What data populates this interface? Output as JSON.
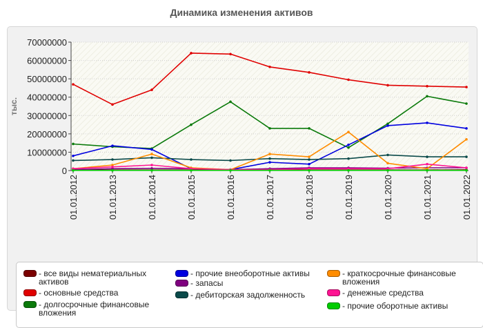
{
  "chart_data": {
    "type": "line",
    "title": "Динамика изменения активов",
    "ylabel": "тыс.",
    "xlabel": "",
    "ylim": [
      0,
      70000000
    ],
    "yticks": [
      "0",
      "10000000",
      "20000000",
      "30000000",
      "40000000",
      "50000000",
      "60000000",
      "70000000"
    ],
    "categories": [
      "01.01.2012",
      "01.01.2013",
      "01.01.2014",
      "01.01.2015",
      "01.01.2016",
      "01.01.2017",
      "01.01.2018",
      "01.01.2019",
      "01.01.2020",
      "01.01.2021",
      "01.01.2022"
    ],
    "grid": true,
    "legend_position": "bottom",
    "series": [
      {
        "name": "все виды нематериальных активов",
        "color": "#7b0000",
        "values": [
          300000,
          300000,
          300000,
          300000,
          300000,
          300000,
          300000,
          300000,
          300000,
          300000,
          400000
        ]
      },
      {
        "name": "основные средства",
        "color": "#e00000",
        "values": [
          47000000,
          36000000,
          44000000,
          64000000,
          63500000,
          56500000,
          53500000,
          49500000,
          46500000,
          46000000,
          45500000
        ]
      },
      {
        "name": "долгосрочные финансовые вложения",
        "color": "#0a7a0a",
        "values": [
          14500000,
          13000000,
          12000000,
          25000000,
          37500000,
          23000000,
          23000000,
          12500000,
          25500000,
          40500000,
          36500000
        ]
      },
      {
        "name": "прочие внеоборотные активы",
        "color": "#0000e0",
        "values": [
          8000000,
          13500000,
          11500000,
          1000000,
          500000,
          4500000,
          3500000,
          14000000,
          24500000,
          26000000,
          23000000
        ]
      },
      {
        "name": "запасы",
        "color": "#800080",
        "values": [
          500000,
          1000000,
          1200000,
          1000000,
          500000,
          1000000,
          1500000,
          1500000,
          1300000,
          1500000,
          1500000
        ]
      },
      {
        "name": "дебиторская задолженность",
        "color": "#0b4a4a",
        "values": [
          5500000,
          6000000,
          7000000,
          6000000,
          5500000,
          6500000,
          6000000,
          6500000,
          8500000,
          7500000,
          7500000
        ]
      },
      {
        "name": "краткосрочные финансовые вложения",
        "color": "#ff8c00",
        "values": [
          1000000,
          3000000,
          9000000,
          1500000,
          500000,
          9000000,
          7500000,
          21000000,
          4000000,
          1000000,
          17000000
        ]
      },
      {
        "name": "денежные средства",
        "color": "#ff1493",
        "values": [
          1000000,
          2000000,
          3000000,
          1000000,
          500000,
          500000,
          1000000,
          1000000,
          1000000,
          3500000,
          1500000
        ]
      },
      {
        "name": "прочие оборотные активы",
        "color": "#00cc00",
        "values": [
          100000,
          100000,
          100000,
          100000,
          100000,
          100000,
          100000,
          100000,
          100000,
          100000,
          100000
        ]
      }
    ]
  }
}
